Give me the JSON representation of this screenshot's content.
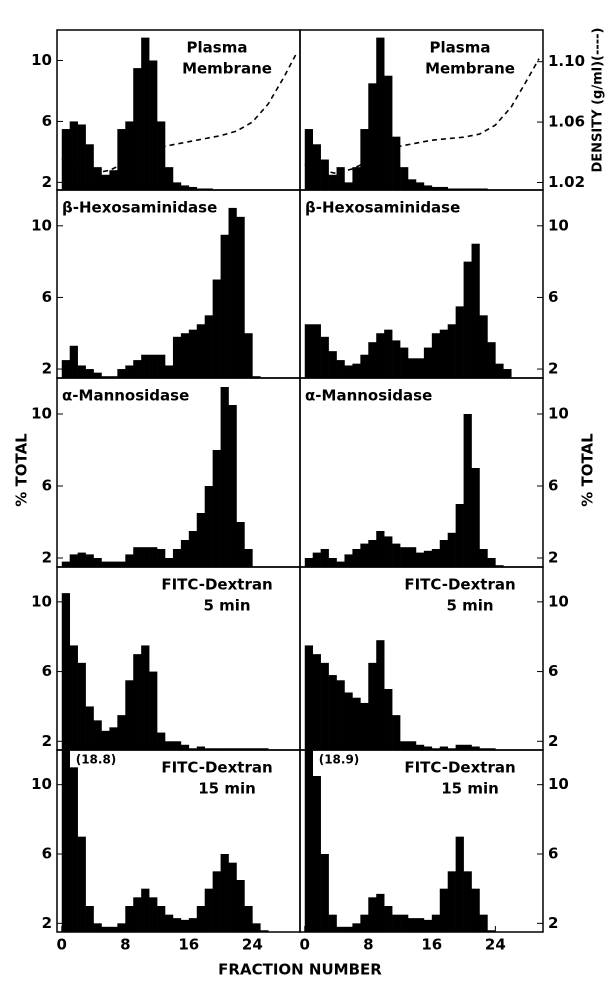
{
  "figure": {
    "x_label": "FRACTION NUMBER",
    "y_label": "% TOTAL"
  },
  "chart_data": [
    {
      "type": "histogram",
      "title": [
        "Plasma",
        "Membrane"
      ],
      "color": "#000000",
      "bins": [
        0,
        1,
        2,
        3,
        4,
        5,
        6,
        7,
        8,
        9,
        10,
        11,
        12,
        13,
        14,
        15,
        16,
        17,
        18,
        19,
        20,
        21,
        22,
        23,
        24,
        25,
        26,
        27,
        28
      ],
      "values": [
        5.5,
        6,
        5.8,
        4.5,
        3,
        2.5,
        2.8,
        5.5,
        6,
        9.5,
        11.5,
        10,
        6,
        3,
        2,
        1.8,
        1.7,
        1.6,
        1.6,
        1.5,
        1.5,
        1.5,
        1.5,
        1.5,
        1.5,
        1.5,
        1.5,
        1.5
      ],
      "xlim": [
        -0.6,
        30
      ],
      "ylim": [
        1.5,
        12
      ],
      "yticks": [
        2,
        6,
        10
      ],
      "y2lim": [
        1.015,
        1.121
      ],
      "density": {
        "axis": "y2",
        "x": [
          0,
          2,
          4,
          6,
          8,
          10,
          12,
          14,
          16,
          18,
          20,
          22,
          24,
          26,
          28,
          29.5
        ],
        "values": [
          1.036,
          1.03,
          1.026,
          1.028,
          1.033,
          1.039,
          1.043,
          1.045,
          1.047,
          1.049,
          1.051,
          1.054,
          1.06,
          1.072,
          1.09,
          1.105
        ]
      }
    },
    {
      "type": "histogram",
      "title": [
        "Plasma",
        "Membrane"
      ],
      "color": "#000000",
      "bins": [
        0,
        1,
        2,
        3,
        4,
        5,
        6,
        7,
        8,
        9,
        10,
        11,
        12,
        13,
        14,
        15,
        16,
        17,
        18,
        19,
        20,
        21,
        22,
        23,
        24,
        25,
        26,
        27,
        28
      ],
      "values": [
        5.5,
        4.5,
        3.5,
        2.5,
        3,
        2,
        3,
        5.5,
        8.5,
        11.5,
        9,
        5,
        3,
        2.2,
        2,
        1.8,
        1.7,
        1.7,
        1.6,
        1.6,
        1.6,
        1.6,
        1.6,
        1.5,
        1.5,
        1.5,
        1.5,
        1.5
      ],
      "xlim": [
        -0.6,
        30
      ],
      "ylim": [
        1.5,
        12
      ],
      "y2lim": [
        1.015,
        1.121
      ],
      "y2ticks": [
        1.02,
        1.06,
        {
          "value": 1.1,
          "label": "1.10"
        }
      ],
      "y2_label": "DENSITY (g/ml)(----)",
      "density": {
        "axis": "y2",
        "x": [
          0,
          2,
          4,
          6,
          8,
          10,
          12,
          14,
          16,
          18,
          20,
          22,
          24,
          26,
          28,
          29.5
        ],
        "values": [
          1.032,
          1.028,
          1.026,
          1.029,
          1.034,
          1.04,
          1.044,
          1.046,
          1.048,
          1.049,
          1.05,
          1.052,
          1.058,
          1.07,
          1.088,
          1.102
        ]
      }
    },
    {
      "type": "histogram",
      "title": [
        "β-Hexosaminidase"
      ],
      "color": "#000000",
      "bins": [
        0,
        1,
        2,
        3,
        4,
        5,
        6,
        7,
        8,
        9,
        10,
        11,
        12,
        13,
        14,
        15,
        16,
        17,
        18,
        19,
        20,
        21,
        22,
        23,
        24,
        25,
        26,
        27,
        28
      ],
      "values": [
        2.5,
        3.3,
        2.2,
        2,
        1.8,
        1.6,
        1.6,
        2,
        2.2,
        2.5,
        2.8,
        2.8,
        2.8,
        2.2,
        3.8,
        4,
        4.2,
        4.5,
        5,
        7,
        9.5,
        11,
        10.5,
        4,
        1.6,
        1.5,
        1.5,
        1.5
      ],
      "xlim": [
        -0.6,
        30
      ],
      "ylim": [
        1.5,
        12
      ],
      "yticks": [
        2,
        6,
        10
      ]
    },
    {
      "type": "histogram",
      "title": [
        "β-Hexosaminidase"
      ],
      "color": "#000000",
      "bins": [
        0,
        1,
        2,
        3,
        4,
        5,
        6,
        7,
        8,
        9,
        10,
        11,
        12,
        13,
        14,
        15,
        16,
        17,
        18,
        19,
        20,
        21,
        22,
        23,
        24,
        25,
        26,
        27,
        28
      ],
      "values": [
        4.5,
        4.5,
        3.8,
        3,
        2.5,
        2.2,
        2.3,
        2.8,
        3.5,
        4,
        4.2,
        3.6,
        3.2,
        2.6,
        2.6,
        3.2,
        4,
        4.2,
        4.5,
        5.5,
        8,
        9,
        5,
        3.5,
        2.3,
        2,
        1.5,
        1.5
      ],
      "xlim": [
        -0.6,
        30
      ],
      "ylim": [
        1.5,
        12
      ],
      "yticks": [
        2,
        6,
        10
      ]
    },
    {
      "type": "histogram",
      "title": [
        "α-Mannosidase"
      ],
      "color": "#000000",
      "bins": [
        0,
        1,
        2,
        3,
        4,
        5,
        6,
        7,
        8,
        9,
        10,
        11,
        12,
        13,
        14,
        15,
        16,
        17,
        18,
        19,
        20,
        21,
        22,
        23,
        24,
        25,
        26,
        27,
        28
      ],
      "values": [
        1.8,
        2.2,
        2.3,
        2.2,
        2,
        1.8,
        1.8,
        1.8,
        2.2,
        2.6,
        2.6,
        2.6,
        2.5,
        2,
        2.5,
        3,
        3.5,
        4.5,
        6,
        8,
        11.5,
        10.5,
        4,
        2.5,
        1.5,
        1.5,
        1.5,
        1.5
      ],
      "xlim": [
        -0.6,
        30
      ],
      "ylim": [
        1.5,
        12
      ],
      "yticks": [
        2,
        6,
        10
      ]
    },
    {
      "type": "histogram",
      "title": [
        "α-Mannosidase"
      ],
      "color": "#000000",
      "bins": [
        0,
        1,
        2,
        3,
        4,
        5,
        6,
        7,
        8,
        9,
        10,
        11,
        12,
        13,
        14,
        15,
        16,
        17,
        18,
        19,
        20,
        21,
        22,
        23,
        24,
        25,
        26,
        27,
        28
      ],
      "values": [
        2,
        2.3,
        2.5,
        2,
        1.8,
        2.2,
        2.5,
        2.8,
        3,
        3.5,
        3.2,
        2.8,
        2.6,
        2.6,
        2.3,
        2.4,
        2.5,
        3,
        3.4,
        5,
        10,
        7,
        2.5,
        2,
        1.6,
        1.5,
        1.5,
        1.5
      ],
      "xlim": [
        -0.6,
        30
      ],
      "ylim": [
        1.5,
        12
      ],
      "yticks": [
        2,
        6,
        10
      ]
    },
    {
      "type": "histogram",
      "title": [
        "FITC-Dextran",
        "5 min"
      ],
      "color": "#000000",
      "bins": [
        0,
        1,
        2,
        3,
        4,
        5,
        6,
        7,
        8,
        9,
        10,
        11,
        12,
        13,
        14,
        15,
        16,
        17,
        18,
        19,
        20,
        21,
        22,
        23,
        24,
        25,
        26,
        27,
        28
      ],
      "values": [
        10.5,
        7.5,
        6.5,
        4,
        3.2,
        2.6,
        2.8,
        3.5,
        5.5,
        7,
        7.5,
        6,
        2.5,
        2,
        2,
        1.8,
        1.6,
        1.7,
        1.6,
        1.6,
        1.6,
        1.6,
        1.6,
        1.6,
        1.6,
        1.6,
        1.5,
        1.5
      ],
      "xlim": [
        -0.6,
        30
      ],
      "ylim": [
        1.5,
        12
      ],
      "yticks": [
        2,
        6,
        10
      ]
    },
    {
      "type": "histogram",
      "title": [
        "FITC-Dextran",
        "5 min"
      ],
      "color": "#000000",
      "bins": [
        0,
        1,
        2,
        3,
        4,
        5,
        6,
        7,
        8,
        9,
        10,
        11,
        12,
        13,
        14,
        15,
        16,
        17,
        18,
        19,
        20,
        21,
        22,
        23,
        24,
        25,
        26,
        27,
        28
      ],
      "values": [
        7.5,
        7,
        6.5,
        5.8,
        5.5,
        4.8,
        4.5,
        4.2,
        6.5,
        7.8,
        5,
        3.5,
        2,
        2,
        1.8,
        1.7,
        1.6,
        1.7,
        1.6,
        1.8,
        1.8,
        1.7,
        1.6,
        1.6,
        1.5,
        1.5,
        1.5,
        1.5
      ],
      "xlim": [
        -0.6,
        30
      ],
      "ylim": [
        1.5,
        12
      ],
      "yticks": [
        2,
        6,
        10
      ]
    },
    {
      "type": "histogram",
      "title": [
        "FITC-Dextran",
        "15 min"
      ],
      "color": "#000000",
      "bins": [
        0,
        1,
        2,
        3,
        4,
        5,
        6,
        7,
        8,
        9,
        10,
        11,
        12,
        13,
        14,
        15,
        16,
        17,
        18,
        19,
        20,
        21,
        22,
        23,
        24,
        25,
        26,
        27,
        28
      ],
      "values": [
        18.8,
        11,
        7,
        3,
        2,
        1.8,
        1.8,
        2,
        3,
        3.5,
        4,
        3.5,
        3,
        2.5,
        2.3,
        2.2,
        2.3,
        3,
        4,
        5,
        6,
        5.5,
        4.5,
        3,
        2,
        1.6,
        1.5,
        1.5
      ],
      "value_labels": [
        "(18.8)",
        null,
        null,
        null,
        null,
        null,
        null,
        null,
        null,
        null,
        null,
        null,
        null,
        null,
        null,
        null,
        null,
        null,
        null,
        null,
        null,
        null,
        null,
        null,
        null,
        null,
        null,
        null
      ],
      "xlim": [
        -0.6,
        30
      ],
      "ylim": [
        1.5,
        12
      ],
      "yticks": [
        2,
        6,
        10
      ],
      "xticks": [
        0,
        8,
        16,
        24
      ]
    },
    {
      "type": "histogram",
      "title": [
        "FITC-Dextran",
        "15 min"
      ],
      "color": "#000000",
      "bins": [
        0,
        1,
        2,
        3,
        4,
        5,
        6,
        7,
        8,
        9,
        10,
        11,
        12,
        13,
        14,
        15,
        16,
        17,
        18,
        19,
        20,
        21,
        22,
        23,
        24,
        25,
        26,
        27,
        28
      ],
      "values": [
        18.9,
        10.5,
        6,
        2.5,
        1.8,
        1.8,
        2,
        2.5,
        3.5,
        3.7,
        3,
        2.5,
        2.5,
        2.3,
        2.3,
        2.2,
        2.5,
        4,
        5,
        7,
        5,
        4,
        2.5,
        1.6,
        1.5,
        1.5,
        1.5,
        1.5
      ],
      "value_labels": [
        "(18.9)",
        null,
        null,
        null,
        null,
        null,
        null,
        null,
        null,
        null,
        null,
        null,
        null,
        null,
        null,
        null,
        null,
        null,
        null,
        null,
        null,
        null,
        null,
        null,
        null,
        null,
        null,
        null
      ],
      "xlim": [
        -0.6,
        30
      ],
      "ylim": [
        1.5,
        12
      ],
      "yticks": [
        2,
        6,
        10
      ],
      "xticks": [
        0,
        8,
        16,
        24
      ]
    }
  ]
}
